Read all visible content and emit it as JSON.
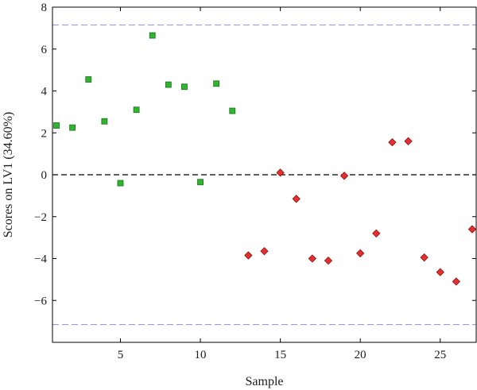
{
  "chart_data": {
    "type": "scatter",
    "xlabel": "Sample",
    "ylabel": "Scores on LV1 (34.60%)",
    "xlim": [
      0.75,
      27.25
    ],
    "ylim": [
      -8,
      8
    ],
    "xticks": [
      5,
      10,
      15,
      20,
      25
    ],
    "yticks": [
      -6,
      -4,
      -2,
      0,
      2,
      4,
      6,
      8
    ],
    "ytick_labels": [
      "−6",
      "−4",
      "−2",
      "0",
      "2",
      "4",
      "6",
      "8"
    ],
    "reference_lines": [
      {
        "y": 0,
        "style": "dashed",
        "color": "#000000"
      },
      {
        "y": 7.15,
        "style": "dashed",
        "color": "#9b9be6"
      },
      {
        "y": -7.15,
        "style": "dashed",
        "color": "#9b9be6"
      }
    ],
    "series": [
      {
        "marker": "square",
        "color": "#2fb52f",
        "x": [
          1,
          2,
          3,
          4,
          5,
          6,
          7,
          8,
          9,
          10,
          11,
          12
        ],
        "y": [
          2.35,
          2.25,
          4.55,
          2.55,
          -0.4,
          3.1,
          6.65,
          4.3,
          4.2,
          -0.35,
          4.35,
          3.05
        ]
      },
      {
        "marker": "diamond",
        "color": "#e62e2e",
        "x": [
          13,
          14,
          15,
          16,
          17,
          18,
          19,
          20,
          21,
          22,
          23,
          24,
          25,
          26,
          27
        ],
        "y": [
          -3.85,
          -3.65,
          0.1,
          -1.15,
          -4.0,
          -4.1,
          -0.05,
          -3.75,
          -2.8,
          1.55,
          1.6,
          -3.95,
          -4.65,
          -5.1,
          -2.6
        ]
      }
    ]
  }
}
